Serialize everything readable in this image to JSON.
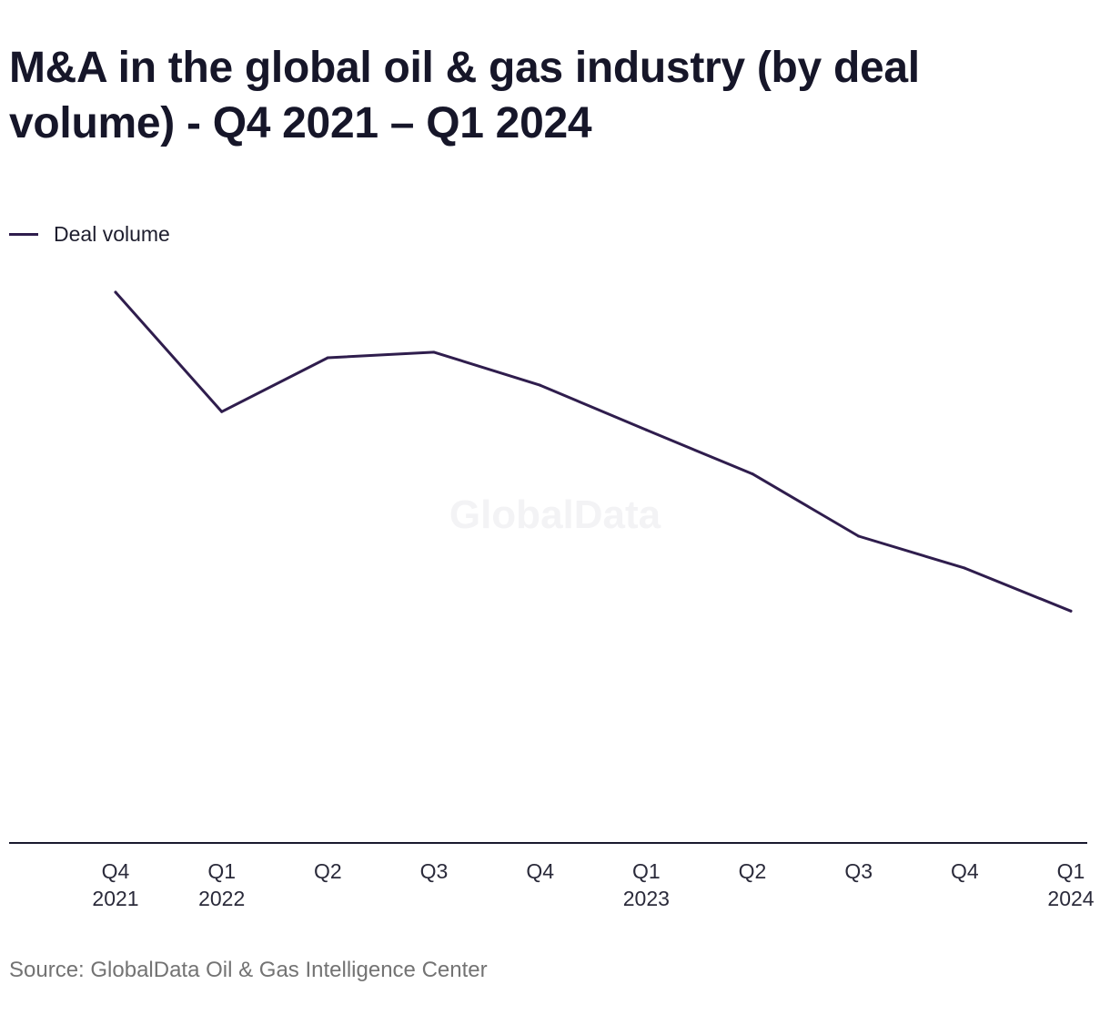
{
  "chart_data": {
    "type": "line",
    "title": "M&A in the global oil & gas industry (by deal volume) - Q4 2021 – Q1 2024",
    "categories": [
      [
        "Q4",
        "2021"
      ],
      [
        "Q1",
        "2022"
      ],
      [
        "Q2",
        ""
      ],
      [
        "Q3",
        ""
      ],
      [
        "Q4",
        ""
      ],
      [
        "Q1",
        "2023"
      ],
      [
        "Q2",
        ""
      ],
      [
        "Q3",
        ""
      ],
      [
        "Q4",
        ""
      ],
      [
        "Q1",
        "2024"
      ]
    ],
    "series": [
      {
        "name": "Deal volume",
        "color": "#2f1d4d",
        "values": [
          1000,
          783,
          881,
          891,
          831,
          750,
          670,
          557,
          499,
          421
        ]
      }
    ],
    "ylim": [
      0,
      1200
    ],
    "grid": false,
    "legend": "top-left",
    "xlabel": "",
    "ylabel": ""
  },
  "watermark": "GlobalData",
  "source": "Source: GlobalData Oil & Gas Intelligence Center"
}
